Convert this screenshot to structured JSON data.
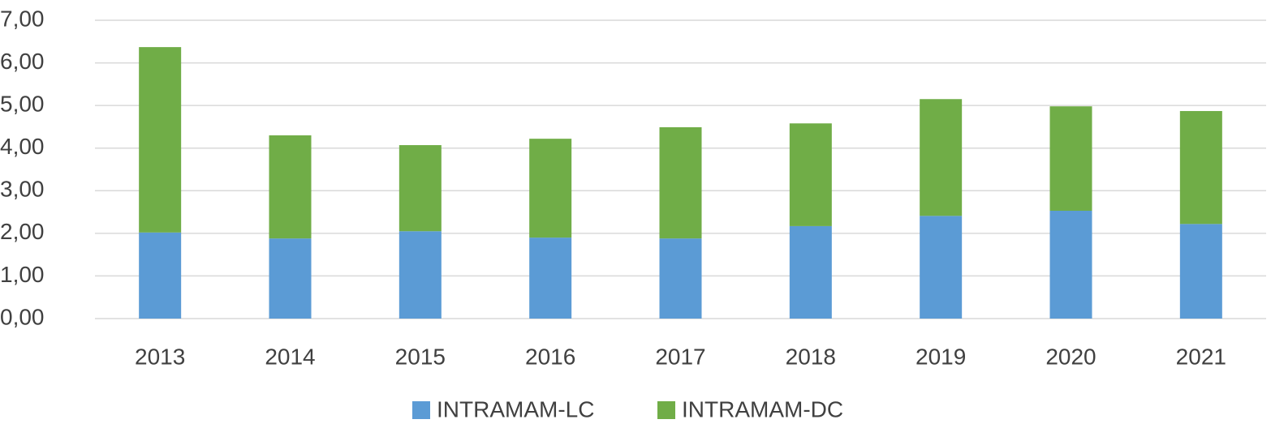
{
  "chart_data": {
    "type": "stacked_bar",
    "categories": [
      "2013",
      "2014",
      "2015",
      "2016",
      "2017",
      "2018",
      "2019",
      "2020",
      "2021"
    ],
    "series": [
      {
        "name": "INTRAMAM-LC",
        "color": "#5b9bd5",
        "values": [
          2.02,
          1.88,
          2.05,
          1.9,
          1.88,
          2.17,
          2.41,
          2.53,
          2.22
        ]
      },
      {
        "name": "INTRAMAM-DC",
        "color": "#70ad47",
        "values": [
          4.35,
          2.42,
          2.02,
          2.32,
          2.61,
          2.41,
          2.74,
          2.45,
          2.65
        ]
      }
    ],
    "ylim": [
      0,
      7
    ],
    "yticks": [
      {
        "value": 0,
        "label": "0,00"
      },
      {
        "value": 1,
        "label": "1,00"
      },
      {
        "value": 2,
        "label": "2,00"
      },
      {
        "value": 3,
        "label": "3,00"
      },
      {
        "value": 4,
        "label": "4,00"
      },
      {
        "value": 5,
        "label": "5,00"
      },
      {
        "value": 6,
        "label": "6,00"
      },
      {
        "value": 7,
        "label": "7,00"
      }
    ],
    "grid": true,
    "legend": "bottom"
  }
}
